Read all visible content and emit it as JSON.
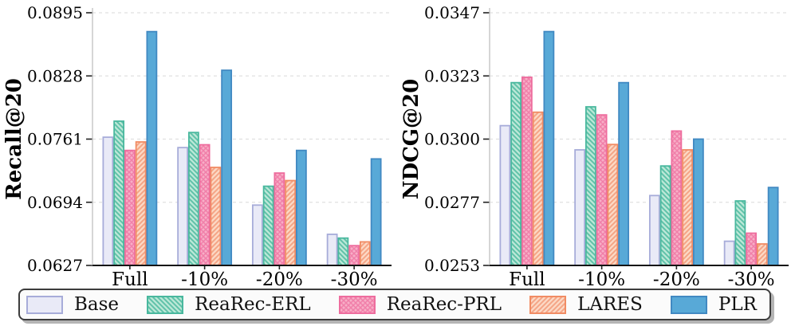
{
  "figure": {
    "legend": {
      "items": [
        {
          "key": "base",
          "label": "Base"
        },
        {
          "key": "erl",
          "label": "ReaRec-ERL"
        },
        {
          "key": "prl",
          "label": "ReaRec-PRL"
        },
        {
          "key": "lares",
          "label": "LARES"
        },
        {
          "key": "plr",
          "label": "PLR"
        }
      ]
    }
  },
  "palette": {
    "base": {
      "fill": "#e9eaf7",
      "edge": "#a7acd9",
      "hatch": "none"
    },
    "erl": {
      "fill": "#bce8d7",
      "edge": "#49b89e",
      "hatch": "\\",
      "hatch_color": "#5fc2a9"
    },
    "prl": {
      "fill": "#f8aec7",
      "edge": "#ee6d9e",
      "hatch": "x",
      "hatch_color": "#f07fa9"
    },
    "lares": {
      "fill": "#fcd9c5",
      "edge": "#f18c64",
      "hatch": "/",
      "hatch_color": "#f5a586"
    },
    "plr": {
      "fill": "#58a9d7",
      "edge": "#4189c2",
      "hatch": "none"
    }
  },
  "style_colors": {
    "grid": "#e0e0e0",
    "axis_line": "#141414",
    "spine": "#bfbfbf",
    "tick": "#222222",
    "text": "#000000"
  },
  "chart_data": [
    {
      "type": "bar",
      "title": "",
      "xlabel": "",
      "ylabel": "Recall@20",
      "categories": [
        "Full",
        "-10%",
        "-20%",
        "-30%"
      ],
      "ylim": [
        0.0627,
        0.0895
      ],
      "ytick_labels": [
        "0.0627",
        "0.0694",
        "0.0761",
        "0.0828",
        "0.0895"
      ],
      "grid": "horizontal-dashed",
      "legend_position": "bottom-shared",
      "series": [
        {
          "name": "Base",
          "values": [
            0.0763,
            0.0752,
            0.0691,
            0.066
          ]
        },
        {
          "name": "ReaRec-ERL",
          "values": [
            0.078,
            0.0768,
            0.0711,
            0.0656
          ]
        },
        {
          "name": "ReaRec-PRL",
          "values": [
            0.0749,
            0.0755,
            0.0725,
            0.0648
          ]
        },
        {
          "name": "LARES",
          "values": [
            0.0758,
            0.0731,
            0.0717,
            0.0652
          ]
        },
        {
          "name": "PLR",
          "values": [
            0.0875,
            0.0834,
            0.0749,
            0.074
          ]
        }
      ]
    },
    {
      "type": "bar",
      "title": "",
      "xlabel": "",
      "ylabel": "NDCG@20",
      "categories": [
        "Full",
        "-10%",
        "-20%",
        "-30%"
      ],
      "ylim": [
        0.0253,
        0.0347
      ],
      "ytick_labels": [
        "0.0253",
        "0.0277",
        "0.0300",
        "0.0323",
        "0.0347"
      ],
      "grid": "horizontal-dashed",
      "legend_position": "bottom-shared",
      "series": [
        {
          "name": "Base",
          "values": [
            0.0305,
            0.0296,
            0.0279,
            0.0262
          ]
        },
        {
          "name": "ReaRec-ERL",
          "values": [
            0.0321,
            0.0312,
            0.029,
            0.0277
          ]
        },
        {
          "name": "ReaRec-PRL",
          "values": [
            0.0323,
            0.0309,
            0.0303,
            0.0265
          ]
        },
        {
          "name": "LARES",
          "values": [
            0.031,
            0.0298,
            0.0296,
            0.0261
          ]
        },
        {
          "name": "PLR",
          "values": [
            0.034,
            0.0321,
            0.03,
            0.0282
          ]
        }
      ]
    }
  ]
}
